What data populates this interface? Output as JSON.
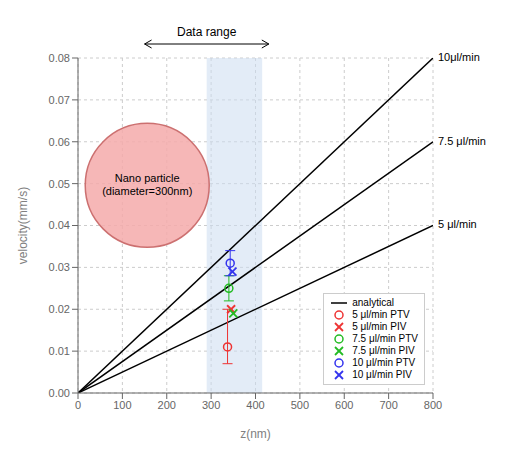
{
  "chart_data": {
    "type": "scatter",
    "title": "",
    "xlabel": "z(nm)",
    "ylabel": "velocity(mm/s)",
    "xlim": [
      0,
      800
    ],
    "ylim": [
      0,
      0.08
    ],
    "xticks": [
      0,
      100,
      200,
      300,
      400,
      500,
      600,
      700,
      800
    ],
    "yticks": [
      {
        "value": 0,
        "label": "0.00"
      },
      0.01,
      0.02,
      0.03,
      0.04,
      0.05,
      0.06,
      0.07,
      0.08
    ],
    "grid": true,
    "legend": "lower right",
    "series": [
      {
        "name": "analytical",
        "type": "line",
        "color": "#000000",
        "line_style": "solid",
        "lines": [
          {
            "label": "10μl/min",
            "x": [
              0,
              800
            ],
            "values": [
              0,
              0.08
            ]
          },
          {
            "label": "7.5 μl/min",
            "x": [
              0,
              800
            ],
            "values": [
              0,
              0.06
            ]
          },
          {
            "label": "5 μl/min",
            "x": [
              0,
              800
            ],
            "values": [
              0,
              0.04
            ]
          }
        ]
      },
      {
        "name": "5 μl/min PTV",
        "type": "scatter",
        "marker": "circle",
        "color": "#ee3333",
        "x": [
          337
        ],
        "values": [
          0.011
        ],
        "error_low": [
          0.004
        ],
        "error_high": [
          0.009
        ]
      },
      {
        "name": "5 μl/min PIV",
        "type": "scatter",
        "marker": "x",
        "color": "#ee3333",
        "x": [
          345
        ],
        "values": [
          0.02
        ]
      },
      {
        "name": "7.5 μl/min PTV",
        "type": "scatter",
        "marker": "circle",
        "color": "#22bb22",
        "x": [
          340
        ],
        "values": [
          0.025
        ],
        "error_low": [
          0.003
        ],
        "error_high": [
          0.003
        ]
      },
      {
        "name": "7.5 μl/min PIV",
        "type": "scatter",
        "marker": "x",
        "color": "#22bb22",
        "x": [
          350
        ],
        "values": [
          0.019
        ]
      },
      {
        "name": "10 μl/min PTV",
        "type": "scatter",
        "marker": "circle",
        "color": "#3333ee",
        "x": [
          343
        ],
        "values": [
          0.031
        ],
        "error_low": [
          0.003
        ],
        "error_high": [
          0.003
        ]
      },
      {
        "name": "10 μl/min PIV",
        "type": "scatter",
        "marker": "x",
        "color": "#3333ee",
        "x": [
          348
        ],
        "values": [
          0.029
        ]
      }
    ],
    "shaded_region": {
      "x": [
        290,
        415
      ],
      "color": "#ccddf0"
    },
    "annotations": [
      {
        "type": "circle",
        "text": "Nano particle\n(diameter=300nm)",
        "color": "#f5aaaa",
        "edge_color": "#cc7070"
      },
      {
        "type": "range_arrow",
        "text": "Data range",
        "x": [
          150,
          430
        ]
      }
    ]
  }
}
